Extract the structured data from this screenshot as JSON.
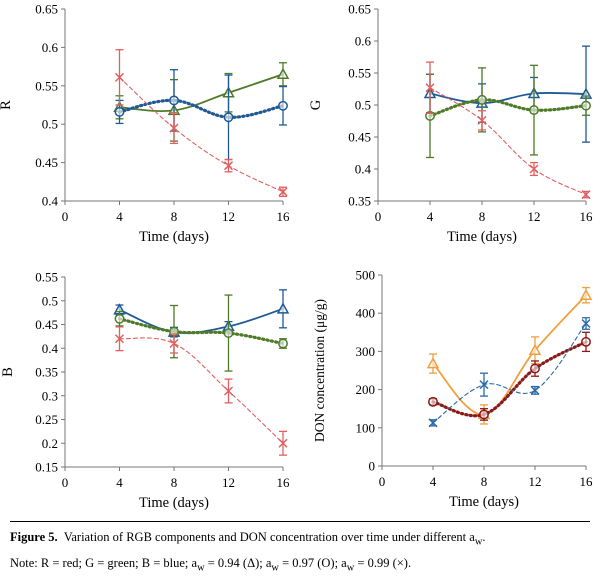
{
  "chart_data": [
    {
      "id": "R",
      "type": "line",
      "ylabel": "R",
      "xlabel": "Time (days)",
      "xlim": [
        0,
        16
      ],
      "xticks": [
        0,
        4,
        8,
        12,
        16
      ],
      "ylim": [
        0.4,
        0.65
      ],
      "yticks": [
        "0.4",
        "0.45",
        "0.5",
        "0.55",
        "0.6",
        "0.65"
      ],
      "series": [
        {
          "name": "aw = 0.94",
          "marker": "triangle",
          "color": "#4f7b28",
          "style": "solid",
          "x": [
            4,
            8,
            12,
            16
          ],
          "y": [
            0.522,
            0.518,
            0.541,
            0.565
          ],
          "err": [
            0.015,
            0.04,
            0.025,
            0.015
          ]
        },
        {
          "name": "aw = 0.97",
          "marker": "circle",
          "color": "#1f5a96",
          "style": "dotted",
          "x": [
            4,
            8,
            12,
            16
          ],
          "y": [
            0.516,
            0.531,
            0.509,
            0.524
          ],
          "err": [
            0.015,
            0.04,
            0.055,
            0.025
          ]
        },
        {
          "name": "aw = 0.99",
          "marker": "x",
          "color": "#e06060",
          "style": "dashed",
          "x": [
            4,
            8,
            12,
            16
          ],
          "y": [
            0.561,
            0.495,
            0.446,
            0.412
          ],
          "err": [
            0.036,
            0.02,
            0.008,
            0.006
          ]
        }
      ]
    },
    {
      "id": "G",
      "type": "line",
      "ylabel": "G",
      "xlabel": "Time (days)",
      "xlim": [
        0,
        16
      ],
      "xticks": [
        0,
        4,
        8,
        12,
        16
      ],
      "ylim": [
        0.35,
        0.65
      ],
      "yticks": [
        "0.35",
        "0.4",
        "0.45",
        "0.5",
        "0.55",
        "0.6",
        "0.65"
      ],
      "series": [
        {
          "name": "aw = 0.94",
          "marker": "triangle",
          "color": "#1f5a96",
          "style": "solid",
          "x": [
            4,
            8,
            12,
            16
          ],
          "y": [
            0.518,
            0.503,
            0.518,
            0.517
          ],
          "err": [
            0.03,
            0.03,
            0.025,
            0.075
          ]
        },
        {
          "name": "aw = 0.97",
          "marker": "circle",
          "color": "#4f7b28",
          "style": "dotted",
          "x": [
            4,
            8,
            12,
            16
          ],
          "y": [
            0.483,
            0.508,
            0.492,
            0.499
          ],
          "err": [
            0.065,
            0.05,
            0.07,
            0.015
          ]
        },
        {
          "name": "aw = 0.99",
          "marker": "x",
          "color": "#e06060",
          "style": "dashed",
          "x": [
            4,
            8,
            12,
            16
          ],
          "y": [
            0.527,
            0.476,
            0.4,
            0.36
          ],
          "err": [
            0.04,
            0.015,
            0.01,
            0.005
          ]
        }
      ]
    },
    {
      "id": "B",
      "type": "line",
      "ylabel": "B",
      "xlabel": "Time (days)",
      "xlim": [
        0,
        16
      ],
      "xticks": [
        0,
        4,
        8,
        12,
        16
      ],
      "ylim": [
        0.15,
        0.55
      ],
      "yticks": [
        "0.15",
        "0.2",
        "0.25",
        "0.3",
        "0.35",
        "0.4",
        "0.45",
        "0.5",
        "0.55"
      ],
      "series": [
        {
          "name": "aw = 0.94",
          "marker": "triangle",
          "color": "#1f5a96",
          "style": "solid",
          "x": [
            4,
            8,
            12,
            16
          ],
          "y": [
            0.481,
            0.434,
            0.446,
            0.483
          ],
          "err": [
            0.01,
            0.01,
            0.01,
            0.04
          ]
        },
        {
          "name": "aw = 0.97",
          "marker": "circle",
          "color": "#4f7b28",
          "style": "dotted",
          "x": [
            4,
            8,
            12,
            16
          ],
          "y": [
            0.462,
            0.435,
            0.432,
            0.41
          ],
          "err": [
            0.015,
            0.055,
            0.08,
            0.01
          ]
        },
        {
          "name": "aw = 0.99",
          "marker": "x",
          "color": "#e06060",
          "style": "dashed",
          "x": [
            4,
            8,
            12,
            16
          ],
          "y": [
            0.42,
            0.41,
            0.31,
            0.2
          ],
          "err": [
            0.025,
            0.02,
            0.025,
            0.025
          ]
        }
      ]
    },
    {
      "id": "DON",
      "type": "line",
      "ylabel": "DON concentration (μg/g)",
      "xlabel": "Time (days)",
      "xlim": [
        0,
        16
      ],
      "xticks": [
        0,
        4,
        8,
        12,
        16
      ],
      "ylim": [
        0,
        500
      ],
      "yticks": [
        "0",
        "100",
        "200",
        "300",
        "400",
        "500"
      ],
      "series": [
        {
          "name": "aw = 0.94",
          "marker": "triangle",
          "color": "#f0a040",
          "style": "solid",
          "x": [
            4,
            8,
            12,
            16
          ],
          "y": [
            268,
            135,
            303,
            447
          ],
          "err": [
            25,
            25,
            35,
            20
          ]
        },
        {
          "name": "aw = 0.97",
          "marker": "circle",
          "color": "#8b1a1a",
          "style": "dotted",
          "x": [
            4,
            8,
            12,
            16
          ],
          "y": [
            168,
            135,
            255,
            325
          ],
          "err": [
            8,
            15,
            20,
            25
          ]
        },
        {
          "name": "aw = 0.99",
          "marker": "x",
          "color": "#2b6aa8",
          "style": "dashed",
          "x": [
            4,
            8,
            12,
            16
          ],
          "y": [
            113,
            213,
            198,
            373
          ],
          "err": [
            8,
            30,
            10,
            15
          ]
        }
      ]
    }
  ],
  "caption": {
    "label": "Figure 5.",
    "line1": "Variation of RGB components and DON concentration over time under different a",
    "line1_sub": "w",
    "line1_end": ".",
    "line2_a": "Note: R = red; G = green; B = blue; a",
    "sub_w": "w",
    "line2_b": " = 0.94 (Δ); a",
    "line2_c": " = 0.97 (O); a",
    "line2_d": " = 0.99 (×)."
  }
}
